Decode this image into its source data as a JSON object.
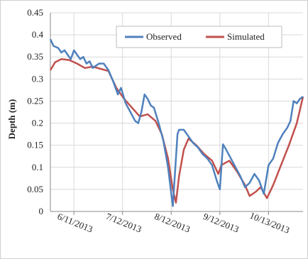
{
  "chart_data": {
    "type": "line",
    "title": "",
    "xlabel": "",
    "ylabel": "Depth (m)",
    "ylim": [
      0,
      0.45
    ],
    "yticks": [
      "0",
      "0.05",
      "0.1",
      "0.15",
      "0.2",
      "0.25",
      "0.3",
      "0.35",
      "0.4",
      "0.45"
    ],
    "xlim": [
      "2013-05-27",
      "2013-11-04"
    ],
    "xticks": [
      "6/11/2013",
      "7/12/2013",
      "8/12/2013",
      "9/12/2013",
      "10/13/2013"
    ],
    "grid": true,
    "legend_position": "top-right",
    "series": [
      {
        "name": "Observed",
        "color": "#4f81bd",
        "points": [
          [
            "2013-05-27",
            0.39
          ],
          [
            "2013-05-29",
            0.375
          ],
          [
            "2013-06-01",
            0.37
          ],
          [
            "2013-06-03",
            0.36
          ],
          [
            "2013-06-05",
            0.365
          ],
          [
            "2013-06-07",
            0.355
          ],
          [
            "2013-06-09",
            0.345
          ],
          [
            "2013-06-11",
            0.365
          ],
          [
            "2013-06-13",
            0.355
          ],
          [
            "2013-06-15",
            0.345
          ],
          [
            "2013-06-17",
            0.35
          ],
          [
            "2013-06-19",
            0.335
          ],
          [
            "2013-06-21",
            0.34
          ],
          [
            "2013-06-23",
            0.325
          ],
          [
            "2013-06-25",
            0.33
          ],
          [
            "2013-06-27",
            0.335
          ],
          [
            "2013-06-30",
            0.335
          ],
          [
            "2013-07-03",
            0.32
          ],
          [
            "2013-07-06",
            0.295
          ],
          [
            "2013-07-09",
            0.265
          ],
          [
            "2013-07-11",
            0.28
          ],
          [
            "2013-07-14",
            0.245
          ],
          [
            "2013-07-17",
            0.225
          ],
          [
            "2013-07-20",
            0.205
          ],
          [
            "2013-07-22",
            0.2
          ],
          [
            "2013-07-24",
            0.225
          ],
          [
            "2013-07-26",
            0.265
          ],
          [
            "2013-07-28",
            0.255
          ],
          [
            "2013-07-30",
            0.24
          ],
          [
            "2013-08-01",
            0.235
          ],
          [
            "2013-08-04",
            0.2
          ],
          [
            "2013-08-07",
            0.16
          ],
          [
            "2013-08-10",
            0.1
          ],
          [
            "2013-08-12",
            0.04
          ],
          [
            "2013-08-13",
            0.012
          ],
          [
            "2013-08-15",
            0.12
          ],
          [
            "2013-08-16",
            0.175
          ],
          [
            "2013-08-17",
            0.185
          ],
          [
            "2013-08-20",
            0.185
          ],
          [
            "2013-08-23",
            0.17
          ],
          [
            "2013-08-26",
            0.155
          ],
          [
            "2013-08-29",
            0.145
          ],
          [
            "2013-09-01",
            0.13
          ],
          [
            "2013-09-04",
            0.12
          ],
          [
            "2013-09-07",
            0.105
          ],
          [
            "2013-09-10",
            0.07
          ],
          [
            "2013-09-12",
            0.05
          ],
          [
            "2013-09-14",
            0.152
          ],
          [
            "2013-09-16",
            0.14
          ],
          [
            "2013-09-19",
            0.12
          ],
          [
            "2013-09-22",
            0.1
          ],
          [
            "2013-09-25",
            0.08
          ],
          [
            "2013-09-28",
            0.055
          ],
          [
            "2013-10-01",
            0.065
          ],
          [
            "2013-10-04",
            0.085
          ],
          [
            "2013-10-07",
            0.07
          ],
          [
            "2013-10-10",
            0.04
          ],
          [
            "2013-10-13",
            0.105
          ],
          [
            "2013-10-16",
            0.12
          ],
          [
            "2013-10-19",
            0.155
          ],
          [
            "2013-10-22",
            0.175
          ],
          [
            "2013-10-25",
            0.19
          ],
          [
            "2013-10-27",
            0.205
          ],
          [
            "2013-10-29",
            0.25
          ],
          [
            "2013-10-31",
            0.245
          ],
          [
            "2013-11-02",
            0.255
          ],
          [
            "2013-11-04",
            0.26
          ]
        ]
      },
      {
        "name": "Simulated",
        "color": "#c0504d",
        "points": [
          [
            "2013-05-27",
            0.32
          ],
          [
            "2013-05-30",
            0.338
          ],
          [
            "2013-06-03",
            0.345
          ],
          [
            "2013-06-08",
            0.343
          ],
          [
            "2013-06-13",
            0.335
          ],
          [
            "2013-06-18",
            0.325
          ],
          [
            "2013-06-23",
            0.328
          ],
          [
            "2013-06-28",
            0.323
          ],
          [
            "2013-07-03",
            0.318
          ],
          [
            "2013-07-08",
            0.28
          ],
          [
            "2013-07-13",
            0.255
          ],
          [
            "2013-07-18",
            0.235
          ],
          [
            "2013-07-23",
            0.215
          ],
          [
            "2013-07-28",
            0.22
          ],
          [
            "2013-08-02",
            0.205
          ],
          [
            "2013-08-06",
            0.175
          ],
          [
            "2013-08-10",
            0.12
          ],
          [
            "2013-08-13",
            0.05
          ],
          [
            "2013-08-15",
            0.02
          ],
          [
            "2013-08-17",
            0.08
          ],
          [
            "2013-08-20",
            0.14
          ],
          [
            "2013-08-23",
            0.165
          ],
          [
            "2013-08-28",
            0.15
          ],
          [
            "2013-09-02",
            0.13
          ],
          [
            "2013-09-07",
            0.115
          ],
          [
            "2013-09-11",
            0.085
          ],
          [
            "2013-09-13",
            0.105
          ],
          [
            "2013-09-18",
            0.115
          ],
          [
            "2013-09-23",
            0.09
          ],
          [
            "2013-09-28",
            0.06
          ],
          [
            "2013-10-01",
            0.035
          ],
          [
            "2013-10-05",
            0.045
          ],
          [
            "2013-10-08",
            0.055
          ],
          [
            "2013-10-12",
            0.03
          ],
          [
            "2013-10-16",
            0.06
          ],
          [
            "2013-10-21",
            0.105
          ],
          [
            "2013-10-26",
            0.15
          ],
          [
            "2013-10-31",
            0.2
          ],
          [
            "2013-11-04",
            0.26
          ]
        ]
      }
    ]
  }
}
